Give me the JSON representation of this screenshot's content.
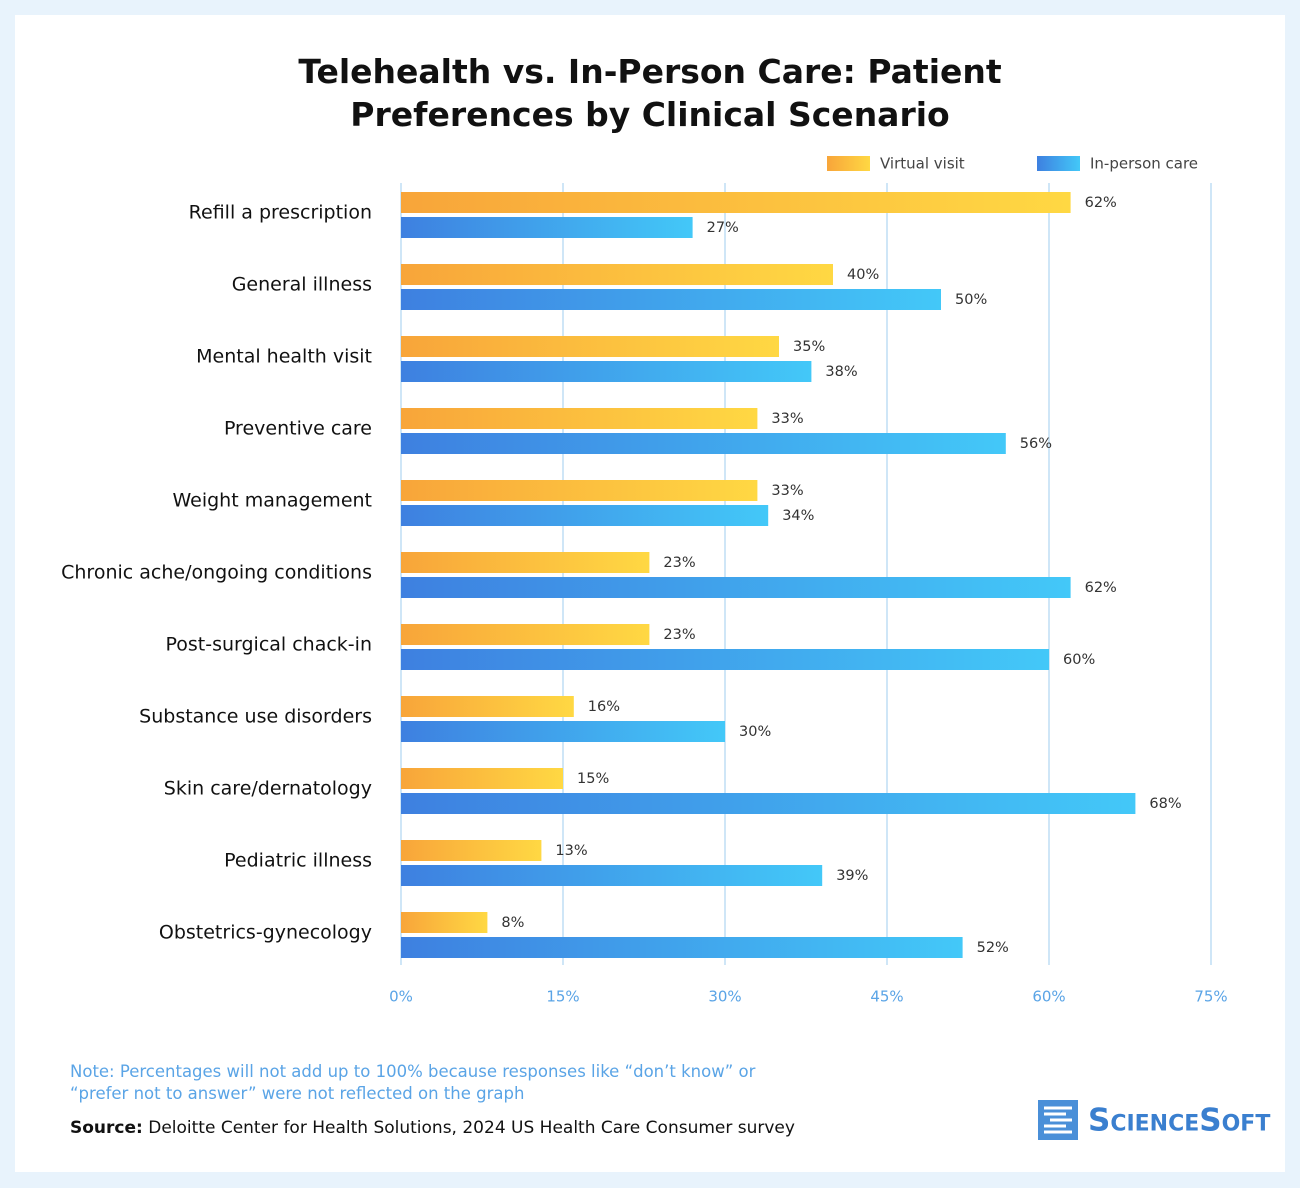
{
  "chart_data": {
    "type": "hbar",
    "title": "Telehealth vs. In-Person Care: Patient Preferences by Clinical Scenario",
    "categories": [
      "Refill a prescription",
      "General illness",
      "Mental health visit",
      "Preventive care",
      "Weight management",
      "Chronic ache/ongoing conditions",
      "Post-surgical chack-in",
      "Substance use disorders",
      "Skin care/dernatology",
      "Pediatric illness",
      "Obstetrics-gynecology"
    ],
    "series": [
      {
        "name": "Virtual visit",
        "color": "#ffd843",
        "gradient": [
          "#f8a53a",
          "#ffd843"
        ],
        "values": [
          62,
          40,
          35,
          33,
          33,
          23,
          23,
          16,
          15,
          13,
          8
        ],
        "value_labels": [
          "62%",
          "40%",
          "35%",
          "33%",
          "33%",
          "23%",
          "23%",
          "16%",
          "15%",
          "13%",
          "8%"
        ]
      },
      {
        "name": "In-person care",
        "color": "#3e86e0",
        "gradient": [
          "#3e80e0",
          "#43c8f8"
        ],
        "values": [
          27,
          50,
          38,
          56,
          34,
          62,
          60,
          30,
          68,
          39,
          52
        ],
        "value_labels": [
          "27%",
          "50%",
          "38%",
          "56%",
          "34%",
          "62%",
          "60%",
          "30%",
          "68%",
          "39%",
          "52%"
        ]
      }
    ],
    "xlim": [
      0,
      75
    ],
    "xticks": [
      {
        "value": 0,
        "label": "0%"
      },
      {
        "value": 15,
        "label": "15%"
      },
      {
        "value": 30,
        "label": "30%"
      },
      {
        "value": 45,
        "label": "45%"
      },
      {
        "value": 60,
        "label": "60%"
      },
      {
        "value": 75,
        "label": "75%"
      }
    ],
    "grid": true,
    "legend": "top-right",
    "note": "Note: Percentages will not add up to 100% because responses like “don’t know” or “prefer not to answer” were not reflected on the graph",
    "source_label": "Source:",
    "source": "Deloitte Center for Health Solutions, 2024 US Health Care Consumer survey",
    "logo": "ScienceSoft"
  }
}
